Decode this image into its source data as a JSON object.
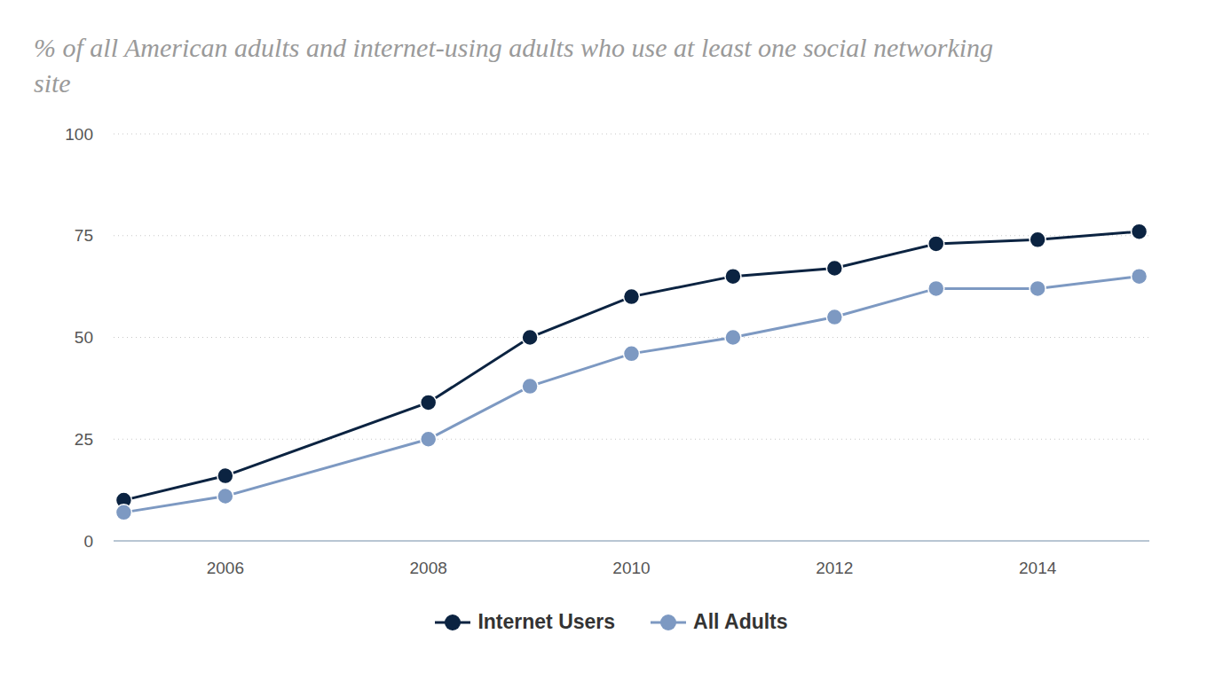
{
  "chart_data": {
    "type": "line",
    "title": "% of all American adults and internet-using adults who use at least one social networking site",
    "x": [
      2005,
      2006,
      2008,
      2009,
      2010,
      2011,
      2012,
      2013,
      2014,
      2015
    ],
    "series": [
      {
        "name": "Internet Users",
        "color": "#0b2341",
        "values": [
          10,
          16,
          34,
          50,
          60,
          65,
          67,
          73,
          74,
          76
        ]
      },
      {
        "name": "All Adults",
        "color": "#7d99c2",
        "values": [
          7,
          11,
          25,
          38,
          46,
          50,
          55,
          62,
          62,
          65
        ]
      }
    ],
    "xlim": [
      2004.9,
      2015.1
    ],
    "xticks": [
      2006,
      2008,
      2010,
      2012,
      2014
    ],
    "ylim": [
      0,
      100
    ],
    "yticks": [
      0,
      25,
      50,
      75,
      100
    ],
    "grid": true,
    "marker": "circle",
    "legend": "bottom"
  }
}
